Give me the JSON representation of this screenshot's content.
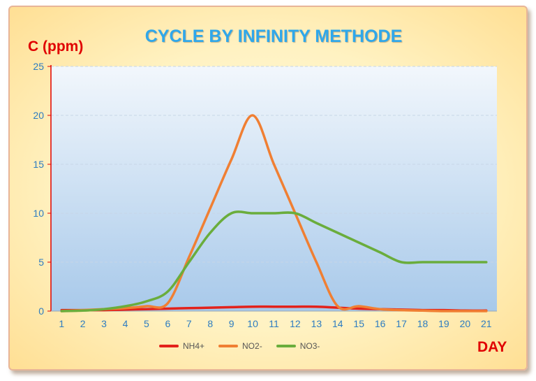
{
  "chart_data": {
    "type": "line",
    "title": "CYCLE BY INFINITY METHODE",
    "ylabel": "C (ppm)",
    "xlabel": "DAY",
    "x": [
      1,
      2,
      3,
      4,
      5,
      6,
      7,
      8,
      9,
      10,
      11,
      12,
      13,
      14,
      15,
      16,
      17,
      18,
      19,
      20,
      21
    ],
    "ylim": [
      0,
      25
    ],
    "yticks": [
      0,
      5,
      10,
      15,
      20,
      25
    ],
    "grid": "horizontal dashed",
    "legend_position": "bottom",
    "series": [
      {
        "name": "NH4+",
        "color": "#e3221b",
        "values": [
          0.1,
          0.1,
          0.1,
          0.15,
          0.2,
          0.25,
          0.3,
          0.35,
          0.4,
          0.45,
          0.45,
          0.45,
          0.45,
          0.35,
          0.25,
          0.2,
          0.15,
          0.1,
          0.1,
          0.05,
          0.05
        ]
      },
      {
        "name": "NO2-",
        "color": "#f07f33",
        "values": [
          0,
          0.1,
          0.2,
          0.3,
          0.5,
          0.8,
          5.5,
          10.5,
          15.5,
          20,
          15,
          10,
          5,
          0.5,
          0.5,
          0.2,
          0.1,
          0.05,
          0,
          0,
          0
        ]
      },
      {
        "name": "NO3-",
        "color": "#6aad3c",
        "values": [
          0,
          0.05,
          0.2,
          0.5,
          1,
          2,
          5,
          8,
          10,
          10,
          10,
          10,
          9,
          8,
          7,
          6,
          5,
          5,
          5,
          5,
          5
        ]
      }
    ]
  }
}
